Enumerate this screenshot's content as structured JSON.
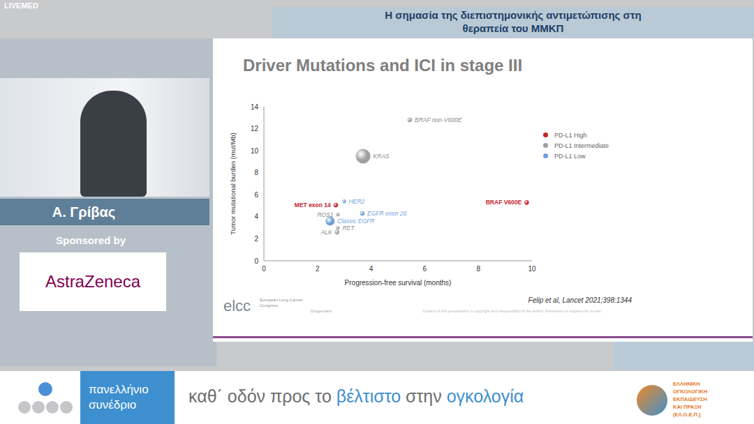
{
  "page": {
    "brand": "LIVEMED",
    "header": [
      "Η σημασία της διεπιστημονικής αντιμετώπισης στη",
      "θεραπεία του ΜΜΚΠ"
    ],
    "speaker": "Α. Γρίβας",
    "sponsor_label": "Sponsored by",
    "sponsor": "AstraZeneca",
    "banner": {
      "event": [
        "πανελλήνιο",
        "συνέδριο"
      ],
      "slogan": [
        "καθ΄ οδόν προς το",
        "βέλτιστο",
        "στην",
        "ογκολογία"
      ],
      "organizer": [
        "ΕΛΛΗΝΙΚΗ",
        "ΟΓΚΟΛΟΓΙΚΗ",
        "ΕΚΠΑΙΔΕΥΣΗ",
        "ΚΑΙ ΠΡΑΞΗ",
        "(ΕΛ.Ο.Ε.Π.)"
      ]
    }
  },
  "slide": {
    "citation": "Felip et al, Lancet 2021;398:1344",
    "logo": "elcc",
    "logo_sub": "European Lung Cancer Congress",
    "author": "Dingemans",
    "copyright": "Content of this presentation is copyright and responsibility of the author. Permission is required for re-use."
  },
  "chart_data": {
    "type": "scatter",
    "title": "Driver Mutations and ICI in stage III",
    "x_label": "Progression-free survival (months)",
    "y_label": "Tumor mutational burden (mut/Mb)",
    "xlim": [
      0,
      10
    ],
    "xticks": [
      0,
      2,
      4,
      6,
      8,
      10
    ],
    "ylim": [
      0,
      14
    ],
    "yticks": [
      0,
      2,
      4,
      6,
      8,
      10,
      12,
      14
    ],
    "grid": false,
    "legend": "right",
    "series": [
      {
        "name": "PD-L1 High",
        "color": "#c8232c",
        "labels": [
          "MET exon 14",
          "BRAF V600E"
        ],
        "x": [
          2.68,
          9.8
        ],
        "values": [
          5.06,
          5.3
        ],
        "size": [
          0.5,
          0.5
        ]
      },
      {
        "name": "PD-L1 Intermediate",
        "color": "#a0a0a0",
        "labels": [
          "BRAF non-V600E",
          "KRAS",
          "ROS1",
          "RET",
          "ALK"
        ],
        "x": [
          5.44,
          3.7,
          2.76,
          2.76,
          2.73
        ],
        "values": [
          12.8,
          9.5,
          4.2,
          3.0,
          2.6
        ],
        "size": [
          0.5,
          5.5,
          0.3,
          0.3,
          0.5
        ]
      },
      {
        "name": "PD-L1 Low",
        "color": "#6f9fd8",
        "labels": [
          "HER2",
          "EGFR exon 20",
          "Classic EGFR"
        ],
        "x": [
          3.0,
          3.67,
          2.47
        ],
        "values": [
          5.4,
          4.3,
          3.6
        ],
        "size": [
          0.3,
          0.5,
          2
        ]
      }
    ]
  }
}
